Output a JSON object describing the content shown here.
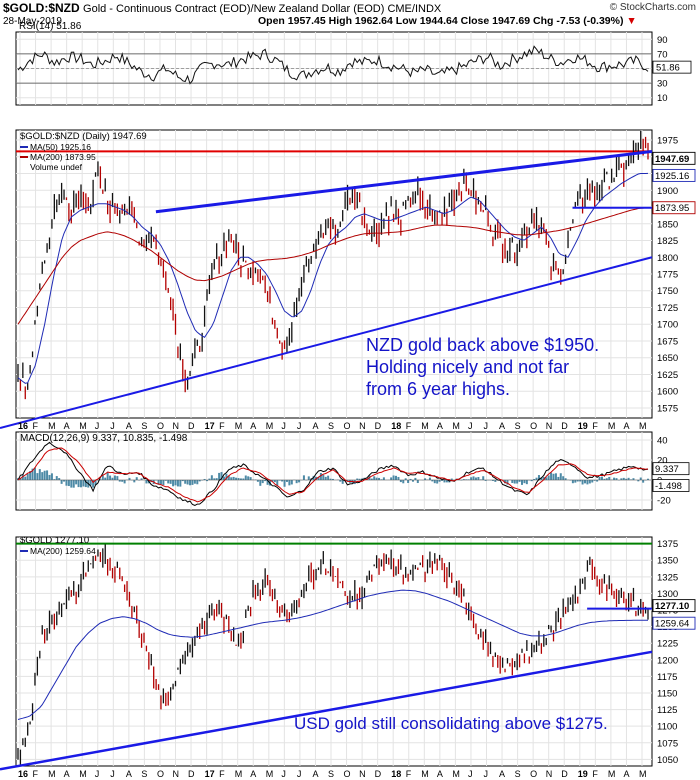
{
  "header": {
    "symbol": "$GOLD:$NZD",
    "description": "Gold - Continuous Contract (EOD)/New Zealand Dollar (EOD)  CME/INDX",
    "credit": "© StockCharts.com",
    "date": "28-May-2019",
    "open_label": "Open",
    "open": "1957.45",
    "high_label": "High",
    "high": "1962.64",
    "low_label": "Low",
    "low": "1944.64",
    "close_label": "Close",
    "close": "1947.69",
    "chg_label": "Chg",
    "chg": "-7.53 (-0.39%)"
  },
  "colors": {
    "price_bars": "#111111",
    "down_bars": "#b30000",
    "ma50": "#1f2bb5",
    "ma200": "#b00000",
    "trendline": "#1a1ae6",
    "resistance": "#e00000",
    "gold_top": "#008000",
    "annotation": "#1414c8"
  },
  "chart_data": [
    {
      "type": "line",
      "title": "RSI(14) 51.86",
      "ylim": [
        0,
        100
      ],
      "yticks": [
        "90",
        "70",
        "50",
        "30",
        "10"
      ],
      "reference_lines": [
        70,
        30
      ],
      "last_value": "51.86",
      "series": [
        {
          "name": "RSI(14)",
          "values": [
            48,
            62,
            70,
            58,
            66,
            64,
            55,
            60,
            68,
            57,
            45,
            40,
            50,
            38,
            35,
            52,
            58,
            55,
            62,
            66,
            70,
            60,
            45,
            40,
            48,
            52,
            46,
            60,
            58,
            62,
            55,
            50,
            44,
            48,
            40,
            46,
            52,
            60,
            66,
            54,
            62,
            70,
            75,
            64,
            58,
            66,
            61,
            52,
            54,
            56,
            60,
            51.86
          ]
        }
      ]
    },
    {
      "type": "line",
      "title": "$GOLD:$NZD (Daily) 1947.69",
      "ylim": [
        1560,
        1990
      ],
      "yticks": [
        "1975",
        "1950",
        "1925",
        "1900",
        "1875",
        "1850",
        "1825",
        "1800",
        "1775",
        "1750",
        "1725",
        "1700",
        "1675",
        "1650",
        "1625",
        "1600",
        "1575"
      ],
      "legend": [
        "$GOLD:$NZD (Daily) 1947.69",
        "MA(50) 1925.16",
        "MA(200) 1873.95",
        "Volume undef"
      ],
      "value_tags": [
        {
          "label": "1947.69",
          "value": 1947.69
        },
        {
          "label": "1925.16",
          "value": 1925.16
        },
        {
          "label": "1873.95",
          "value": 1873.95
        }
      ],
      "series": [
        {
          "name": "$GOLD:$NZD (Daily)",
          "values": [
            1620,
            1600,
            1700,
            1800,
            1860,
            1900,
            1870,
            1890,
            1880,
            1920,
            1885,
            1870,
            1880,
            1860,
            1820,
            1840,
            1790,
            1760,
            1680,
            1620,
            1650,
            1700,
            1780,
            1810,
            1830,
            1800,
            1780,
            1790,
            1750,
            1700,
            1670,
            1710,
            1760,
            1800,
            1830,
            1850,
            1840,
            1880,
            1900,
            1860,
            1840,
            1850,
            1870,
            1860,
            1880,
            1890,
            1870,
            1860,
            1870,
            1890,
            1910,
            1900,
            1880,
            1860,
            1830,
            1820,
            1810,
            1830,
            1860,
            1850,
            1790,
            1770,
            1820,
            1880,
            1900,
            1890,
            1910,
            1920,
            1930,
            1940,
            1970,
            1947.69
          ]
        },
        {
          "name": "MA(50)",
          "values": [
            1620,
            1610,
            1640,
            1700,
            1770,
            1830,
            1860,
            1870,
            1875,
            1880,
            1880,
            1875,
            1870,
            1860,
            1845,
            1835,
            1820,
            1795,
            1760,
            1720,
            1690,
            1680,
            1700,
            1740,
            1780,
            1800,
            1800,
            1790,
            1775,
            1750,
            1720,
            1710,
            1720,
            1750,
            1790,
            1820,
            1835,
            1845,
            1860,
            1865,
            1860,
            1855,
            1855,
            1860,
            1865,
            1870,
            1875,
            1870,
            1865,
            1870,
            1880,
            1890,
            1885,
            1870,
            1855,
            1840,
            1830,
            1825,
            1835,
            1845,
            1830,
            1805,
            1800,
            1825,
            1855,
            1875,
            1890,
            1900,
            1910,
            1918,
            1925,
            1925.16
          ]
        },
        {
          "name": "MA(200)",
          "values": [
            1700,
            1720,
            1740,
            1760,
            1780,
            1800,
            1815,
            1825,
            1830,
            1835,
            1838,
            1836,
            1832,
            1826,
            1818,
            1810,
            1800,
            1790,
            1780,
            1772,
            1766,
            1765,
            1768,
            1772,
            1778,
            1784,
            1790,
            1794,
            1796,
            1797,
            1798,
            1800,
            1803,
            1807,
            1812,
            1818,
            1823,
            1828,
            1832,
            1835,
            1836,
            1836,
            1837,
            1838,
            1840,
            1843,
            1846,
            1848,
            1848,
            1847,
            1846,
            1845,
            1843,
            1840,
            1838,
            1836,
            1834,
            1833,
            1834,
            1836,
            1838,
            1840,
            1843,
            1846,
            1850,
            1854,
            1858,
            1862,
            1866,
            1870,
            1873,
            1873.95
          ]
        }
      ],
      "annotation": [
        "NZD gold back above $1950.",
        "Holding nicely and not far",
        "from 6 year highs."
      ]
    },
    {
      "type": "line",
      "title": "MACD(12,26,9) 9.337, 10.835, -1.498",
      "ylim": [
        -30,
        48
      ],
      "yticks": [
        "40",
        "20",
        "0",
        "-20"
      ],
      "value_tags": [
        {
          "label": "9.337",
          "value": 9.337
        },
        {
          "label": "-1.498",
          "value": -1.498
        }
      ],
      "series": [
        {
          "name": "MACD(12,26,9)",
          "values": [
            0,
            20,
            38,
            30,
            10,
            -10,
            15,
            5,
            8,
            -5,
            -10,
            -20,
            -25,
            -10,
            10,
            15,
            5,
            -5,
            -18,
            -10,
            8,
            12,
            -5,
            0,
            10,
            15,
            5,
            8,
            2,
            -2,
            8,
            12,
            0,
            -10,
            -15,
            5,
            20,
            15,
            2,
            5,
            10,
            14,
            9.337
          ]
        },
        {
          "name": "Signal",
          "values": [
            0,
            10,
            30,
            32,
            18,
            -2,
            8,
            6,
            7,
            -2,
            -7,
            -16,
            -22,
            -14,
            4,
            12,
            8,
            -2,
            -14,
            -12,
            3,
            10,
            -2,
            -1,
            7,
            12,
            7,
            7,
            3,
            -1,
            5,
            10,
            2,
            -7,
            -13,
            0,
            15,
            16,
            5,
            4,
            8,
            12,
            10.835
          ]
        },
        {
          "name": "Histogram",
          "values": [
            0,
            10,
            8,
            -2,
            -8,
            -8,
            7,
            -1,
            1,
            -3,
            -3,
            -4,
            -3,
            4,
            6,
            3,
            -3,
            -3,
            -4,
            2,
            5,
            2,
            -3,
            1,
            3,
            3,
            -2,
            1,
            -1,
            -1,
            3,
            2,
            -2,
            -3,
            -2,
            5,
            5,
            -1,
            -3,
            1,
            2,
            2,
            -1.498
          ]
        }
      ]
    },
    {
      "type": "line",
      "title": "$GOLD 1277.10",
      "ylim": [
        1040,
        1385
      ],
      "yticks": [
        "1375",
        "1350",
        "1325",
        "1300",
        "1275",
        "1250",
        "1225",
        "1200",
        "1175",
        "1150",
        "1125",
        "1100",
        "1075",
        "1050"
      ],
      "legend": [
        "$GOLD 1277.10",
        "MA(200) 1259.64"
      ],
      "value_tags": [
        {
          "label": "1277.10",
          "value": 1277.1
        },
        {
          "label": "1259.64",
          "value": 1259.64
        }
      ],
      "x_labels": [
        "16",
        "F",
        "M",
        "A",
        "M",
        "J",
        "J",
        "A",
        "S",
        "O",
        "N",
        "D",
        "17",
        "F",
        "M",
        "A",
        "M",
        "J",
        "J",
        "A",
        "S",
        "O",
        "N",
        "D",
        "18",
        "F",
        "M",
        "A",
        "M",
        "J",
        "J",
        "A",
        "S",
        "O",
        "N",
        "D",
        "19",
        "F",
        "M",
        "A",
        "M"
      ],
      "series": [
        {
          "name": "$GOLD",
          "values": [
            1060,
            1100,
            1230,
            1260,
            1280,
            1300,
            1340,
            1360,
            1340,
            1320,
            1270,
            1220,
            1150,
            1130,
            1200,
            1230,
            1260,
            1280,
            1250,
            1220,
            1290,
            1320,
            1300,
            1270,
            1280,
            1330,
            1340,
            1330,
            1300,
            1290,
            1320,
            1350,
            1345,
            1335,
            1330,
            1340,
            1350,
            1330,
            1300,
            1250,
            1230,
            1200,
            1185,
            1200,
            1210,
            1230,
            1250,
            1280,
            1300,
            1340,
            1320,
            1300,
            1290,
            1280,
            1277.1
          ]
        },
        {
          "name": "MA(200)",
          "values": [
            1110,
            1115,
            1130,
            1160,
            1190,
            1220,
            1240,
            1255,
            1262,
            1265,
            1262,
            1255,
            1245,
            1238,
            1235,
            1234,
            1236,
            1240,
            1244,
            1248,
            1252,
            1256,
            1258,
            1260,
            1263,
            1267,
            1272,
            1278,
            1284,
            1290,
            1296,
            1300,
            1303,
            1305,
            1304,
            1300,
            1294,
            1288,
            1280,
            1272,
            1264,
            1256,
            1248,
            1240,
            1236,
            1236,
            1240,
            1246,
            1252,
            1256,
            1258,
            1259,
            1259.3,
            1259.5,
            1259.64
          ]
        }
      ],
      "annotation": [
        "USD gold still consolidating above $1275."
      ]
    }
  ]
}
